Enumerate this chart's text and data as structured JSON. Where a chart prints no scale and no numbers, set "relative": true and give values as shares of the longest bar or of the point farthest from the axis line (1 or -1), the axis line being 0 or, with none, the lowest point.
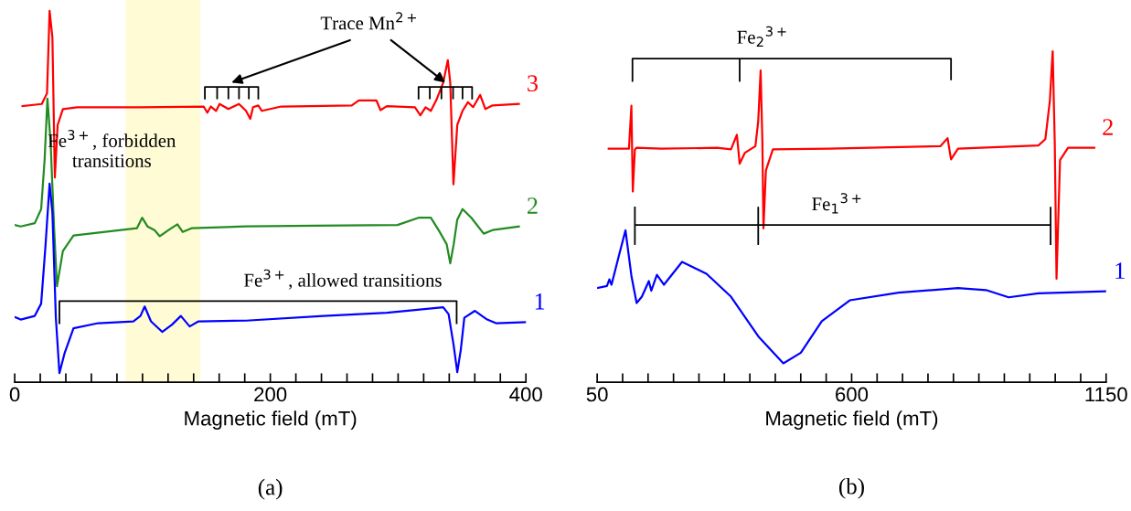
{
  "chart_data": [
    {
      "type": "line",
      "relative": true,
      "xlabel": "Magnetic field (mT)",
      "xlim": [
        0,
        400
      ],
      "xticks": [
        0,
        {
          "value": 20,
          "label": null
        },
        {
          "value": 40,
          "label": null
        },
        {
          "value": 60,
          "label": null
        },
        {
          "value": 80,
          "label": null
        },
        {
          "value": 100,
          "label": null
        },
        {
          "value": 120,
          "label": null
        },
        {
          "value": 140,
          "label": null
        },
        {
          "value": 160,
          "label": null
        },
        {
          "value": 180,
          "label": null
        },
        200,
        {
          "value": 220,
          "label": null
        },
        {
          "value": 240,
          "label": null
        },
        {
          "value": 260,
          "label": null
        },
        {
          "value": 280,
          "label": null
        },
        {
          "value": 300,
          "label": null
        },
        {
          "value": 320,
          "label": null
        },
        {
          "value": 340,
          "label": null
        },
        {
          "value": 360,
          "label": null
        },
        {
          "value": 380,
          "label": null
        },
        400
      ],
      "tick_labels": "x",
      "grid": false,
      "legend": false,
      "bands": [
        {
          "axis": "x",
          "from": 86.8,
          "to": 145.2,
          "color": "#fffbd5"
        }
      ],
      "series": [
        {
          "name": "3",
          "color": "#ff0000",
          "x": [
            6.1,
            21.2,
            25.3,
            27.3,
            29.5,
            31.4,
            33.6,
            37.7,
            48.8,
            98.4,
            147.9,
            150.7,
            153.5,
            157.6,
            160.3,
            167.2,
            175.5,
            181.0,
            184.3,
            186.5,
            190.6,
            193.4,
            208.6,
            263.7,
            269.2,
            283.0,
            286.2,
            291.2,
            313.2,
            317.4,
            321.5,
            325.6,
            329.8,
            335.3,
            338.9,
            340.8,
            343.3,
            346.3,
            350.4,
            354.6,
            358.7,
            364.2,
            368.3,
            373.9,
            394.5
          ],
          "values": [
            0.737,
            0.743,
            0.773,
            1.0,
            0.927,
            0.54,
            0.685,
            0.729,
            0.734,
            0.734,
            0.736,
            0.719,
            0.736,
            0.724,
            0.743,
            0.729,
            0.743,
            0.724,
            0.702,
            0.734,
            0.739,
            0.724,
            0.736,
            0.739,
            0.753,
            0.753,
            0.726,
            0.737,
            0.734,
            0.712,
            0.734,
            0.724,
            0.753,
            0.802,
            0.864,
            0.802,
            0.521,
            0.685,
            0.724,
            0.748,
            0.734,
            0.768,
            0.729,
            0.739,
            0.743
          ]
        },
        {
          "name": "2",
          "color": "#228b22",
          "x": [
            0,
            4.7,
            15.7,
            20.7,
            23.4,
            25.6,
            28.1,
            30.9,
            33.1,
            37.7,
            46.0,
            70.8,
            95.6,
            99.7,
            103.9,
            109.4,
            113.5,
            120.4,
            127.3,
            131.4,
            138.3,
            181.0,
            236.1,
            299.5,
            315.9,
            325.6,
            332.5,
            338.0,
            340.8,
            343.5,
            346.3,
            350.4,
            357.3,
            367.0,
            373.9,
            394.5
          ],
          "values": [
            0.409,
            0.405,
            0.414,
            0.453,
            0.589,
            0.758,
            0.637,
            0.395,
            0.24,
            0.337,
            0.38,
            0.39,
            0.4,
            0.429,
            0.405,
            0.395,
            0.378,
            0.395,
            0.411,
            0.39,
            0.4,
            0.405,
            0.407,
            0.409,
            0.429,
            0.429,
            0.39,
            0.356,
            0.303,
            0.356,
            0.424,
            0.453,
            0.429,
            0.385,
            0.395,
            0.405
          ]
        },
        {
          "name": "1",
          "color": "#0000ff",
          "x": [
            0,
            4.7,
            15.7,
            20.7,
            24.0,
            27.3,
            29.5,
            32.2,
            35.0,
            39.1,
            46.0,
            65.3,
            92.8,
            98.4,
            101.7,
            106.6,
            115.4,
            123.1,
            130.0,
            136.9,
            143.8,
            181.0,
            241.6,
            291.2,
            335.3,
            339.5,
            343.5,
            346.3,
            349.1,
            351.8,
            360.1,
            369.7,
            376.6,
            400.0
          ],
          "values": [
            0.155,
            0.148,
            0.158,
            0.192,
            0.347,
            0.523,
            0.443,
            0.153,
            0.0,
            0.056,
            0.124,
            0.138,
            0.143,
            0.158,
            0.184,
            0.143,
            0.114,
            0.134,
            0.158,
            0.129,
            0.143,
            0.145,
            0.158,
            0.167,
            0.182,
            0.163,
            0.076,
            0.003,
            0.066,
            0.153,
            0.172,
            0.148,
            0.138,
            0.141
          ]
        },
        {
          "color": "#000000",
          "x": [
            148.8,
            148.8,
            158.4,
            158.4,
            158.4,
            167.2,
            167.2,
            167.2,
            175.5,
            175.5,
            175.5,
            183.2,
            183.2,
            183.2,
            190.6,
            190.6
          ],
          "values": [
            0.758,
            0.79,
            0.79,
            0.758,
            0.79,
            0.79,
            0.758,
            0.79,
            0.79,
            0.758,
            0.79,
            0.79,
            0.758,
            0.79,
            0.79,
            0.758
          ]
        },
        {
          "color": "#000000",
          "x": [
            316.0,
            316.0,
            324.8,
            324.8,
            324.8,
            333.9,
            333.9,
            333.9,
            343.0,
            343.0,
            343.0,
            350.4,
            350.4,
            350.4,
            357.9,
            357.9
          ],
          "values": [
            0.758,
            0.79,
            0.79,
            0.758,
            0.79,
            0.79,
            0.758,
            0.79,
            0.79,
            0.758,
            0.79,
            0.79,
            0.758,
            0.79,
            0.79,
            0.758
          ]
        },
        {
          "color": "#000000",
          "x": [
            35.0,
            35.0,
            345.8,
            345.8
          ],
          "values": [
            0.138,
            0.199,
            0.199,
            0.138
          ]
        }
      ],
      "annotations": [
        "Trace Mn$^{2+}$",
        "Fe$^{3+}$, forbidden\ntransitions",
        "Fe$^{3+}$, allowed transitions",
        "(a)"
      ]
    },
    {
      "type": "line",
      "relative": true,
      "xlabel": "Magnetic field (mT)",
      "xlim": [
        50,
        1150
      ],
      "xticks": [
        50,
        {
          "value": 105,
          "label": null
        },
        {
          "value": 160,
          "label": null
        },
        {
          "value": 215,
          "label": null
        },
        {
          "value": 270,
          "label": null
        },
        {
          "value": 325,
          "label": null
        },
        {
          "value": 380,
          "label": null
        },
        {
          "value": 435,
          "label": null
        },
        {
          "value": 490,
          "label": null
        },
        {
          "value": 545,
          "label": null
        },
        600,
        {
          "value": 655,
          "label": null
        },
        {
          "value": 710,
          "label": null
        },
        {
          "value": 765,
          "label": null
        },
        {
          "value": 820,
          "label": null
        },
        {
          "value": 875,
          "label": null
        },
        {
          "value": 930,
          "label": null
        },
        {
          "value": 985,
          "label": null
        },
        {
          "value": 1040,
          "label": null
        },
        {
          "value": 1095,
          "label": null
        },
        1150
      ],
      "tick_labels": "x",
      "grid": false,
      "legend": false,
      "series": [
        {
          "name": "2",
          "color": "#ff0000",
          "x": [
            74.9,
            118.7,
            124.0,
            127.0,
            131.5,
            135.3,
            188.2,
            309.0,
            339.2,
            352.0,
            358.0,
            369.4,
            392.0,
            398.1,
            403.3,
            407.1,
            409.4,
            414.7,
            429.8,
            550.6,
            792.2,
            807.3,
            814.8,
            829.9,
            1003.6,
            1018.7,
            1028.5,
            1034.5,
            1039.0,
            1042.8,
            1050.4,
            1067.7,
            1124.4
          ],
          "values": [
            0.704,
            0.704,
            0.834,
            0.575,
            0.702,
            0.707,
            0.704,
            0.707,
            0.702,
            0.746,
            0.659,
            0.692,
            0.712,
            0.787,
            0.94,
            0.723,
            0.464,
            0.639,
            0.702,
            0.704,
            0.712,
            0.736,
            0.672,
            0.704,
            0.714,
            0.733,
            0.85,
            1.0,
            0.723,
            0.312,
            0.67,
            0.707,
            0.707
          ]
        },
        {
          "name": "1",
          "color": "#0000ff",
          "x": [
            50,
            71.1,
            76.4,
            81.0,
            97.6,
            111.2,
            124.0,
            135.3,
            146.6,
            161.7,
            167.0,
            179.1,
            194.2,
            233.5,
            286.3,
            339.2,
            399.6,
            452.4,
            490.2,
            535.5,
            595.9,
            701.6,
            829.9,
            890.3,
            939.4,
            1003.6,
            1150
          ],
          "values": [
            0.284,
            0.29,
            0.31,
            0.294,
            0.385,
            0.458,
            0.321,
            0.239,
            0.258,
            0.305,
            0.276,
            0.324,
            0.294,
            0.363,
            0.327,
            0.258,
            0.136,
            0.057,
            0.089,
            0.184,
            0.247,
            0.27,
            0.284,
            0.278,
            0.256,
            0.268,
            0.274
          ]
        },
        {
          "color": "#000000",
          "x": [
            126.3,
            126.3,
            358.0,
            358.0,
            358.0,
            814.8,
            814.8
          ],
          "values": [
            0.908,
            0.976,
            0.976,
            0.908,
            0.976,
            0.976,
            0.913
          ]
        },
        {
          "color": "#000000",
          "x": [
            131.5,
            131.5,
            131.5,
            398.1,
            398.1,
            398.1,
            398.1,
            1030.0,
            1030.0,
            1030.0
          ],
          "values": [
            0.527,
            0.416,
            0.474,
            0.474,
            0.527,
            0.416,
            0.474,
            0.474,
            0.527,
            0.416
          ]
        }
      ],
      "annotations": [
        "Fe$_{2}$$^{3+}$",
        "Fe$_{1}$$^{3+}$",
        "(b)"
      ]
    }
  ]
}
